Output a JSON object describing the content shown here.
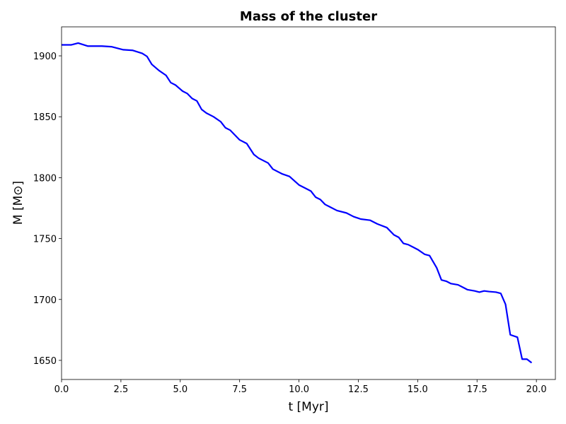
{
  "chart_data": {
    "type": "line",
    "title": "Mass of the cluster",
    "x_label": "t [Myr]",
    "y_label": "M [M⊙]",
    "x": [
      0,
      0.4,
      0.7,
      1.1,
      1.5,
      1.7,
      2.1,
      2.3,
      2.6,
      3.0,
      3.4,
      3.6,
      3.8,
      4.1,
      4.4,
      4.6,
      4.8,
      5.1,
      5.3,
      5.5,
      5.7,
      5.9,
      6.1,
      6.4,
      6.7,
      6.9,
      7.1,
      7.5,
      7.8,
      8.1,
      8.3,
      8.7,
      8.9,
      9.3,
      9.6,
      10.0,
      10.3,
      10.5,
      10.7,
      10.9,
      11.1,
      11.3,
      11.6,
      12.0,
      12.3,
      12.6,
      13.0,
      13.3,
      13.7,
      14.0,
      14.2,
      14.4,
      14.6,
      14.8,
      15.0,
      15.3,
      15.5,
      15.8,
      16.0,
      16.2,
      16.4,
      16.7,
      16.9,
      17.1,
      17.4,
      17.6,
      17.8,
      18.0,
      18.3,
      18.5,
      18.7,
      18.9,
      19.2,
      19.4,
      19.6,
      19.8
    ],
    "series": [
      {
        "color": "#0000ff",
        "values": [
          1909,
          1909,
          1910.5,
          1908,
          1908,
          1908,
          1907.5,
          1906.5,
          1905,
          1904.5,
          1902,
          1899.5,
          1893,
          1888,
          1884,
          1878,
          1876,
          1871,
          1869,
          1865,
          1863,
          1856,
          1853,
          1850,
          1846,
          1841,
          1839,
          1831,
          1828,
          1819,
          1816,
          1812,
          1807,
          1803,
          1801,
          1794,
          1791,
          1789,
          1784,
          1782,
          1778,
          1776,
          1773,
          1771,
          1768,
          1766,
          1765,
          1762,
          1759,
          1753,
          1751,
          1746,
          1745,
          1743,
          1741,
          1737,
          1736,
          1726,
          1716,
          1715,
          1713,
          1712,
          1710,
          1708,
          1707,
          1706,
          1707,
          1706.5,
          1706,
          1705,
          1696,
          1671,
          1669,
          1651,
          1651,
          1648
        ]
      }
    ],
    "xlim": [
      0,
      20.8
    ],
    "ylim": [
      1634.3,
      1923.8
    ],
    "xticks": [
      {
        "value": 0,
        "label": "0.0"
      },
      2.5,
      {
        "value": 5,
        "label": "5.0"
      },
      7.5,
      {
        "value": 10,
        "label": "10.0"
      },
      12.5,
      {
        "value": 15,
        "label": "15.0"
      },
      17.5,
      {
        "value": 20,
        "label": "20.0"
      }
    ],
    "yticks": [
      1650,
      1700,
      1750,
      1800,
      1850,
      1900
    ],
    "grid": false
  }
}
